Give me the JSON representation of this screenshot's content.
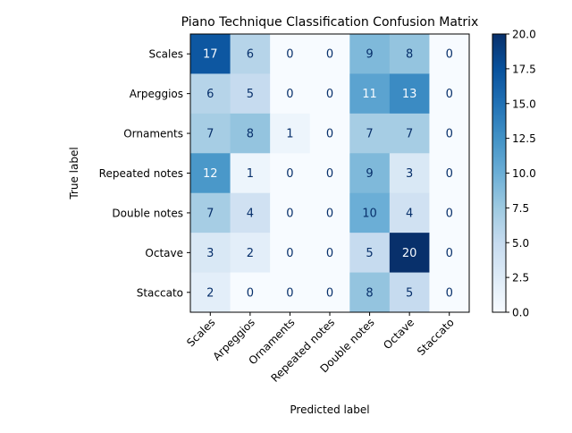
{
  "chart_data": {
    "type": "heatmap",
    "title": "Piano Technique Classification Confusion Matrix",
    "xlabel": "Predicted label",
    "ylabel": "True label",
    "x_categories": [
      "Scales",
      "Arpeggios",
      "Ornaments",
      "Repeated notes",
      "Double notes",
      "Octave",
      "Staccato"
    ],
    "y_categories": [
      "Scales",
      "Arpeggios",
      "Ornaments",
      "Repeated notes",
      "Double notes",
      "Octave",
      "Staccato"
    ],
    "values": [
      [
        17,
        6,
        0,
        0,
        9,
        8,
        0
      ],
      [
        6,
        5,
        0,
        0,
        11,
        13,
        0
      ],
      [
        7,
        8,
        1,
        0,
        7,
        7,
        0
      ],
      [
        12,
        1,
        0,
        0,
        9,
        3,
        0
      ],
      [
        7,
        4,
        0,
        0,
        10,
        4,
        0
      ],
      [
        3,
        2,
        0,
        0,
        5,
        20,
        0
      ],
      [
        2,
        0,
        0,
        0,
        8,
        5,
        0
      ]
    ],
    "colormap": "Blues",
    "colorbar": {
      "range": [
        0,
        20
      ],
      "ticks": [
        "0.0",
        "2.5",
        "5.0",
        "7.5",
        "10.0",
        "12.5",
        "15.0",
        "17.5",
        "20.0"
      ]
    },
    "grid": false
  }
}
